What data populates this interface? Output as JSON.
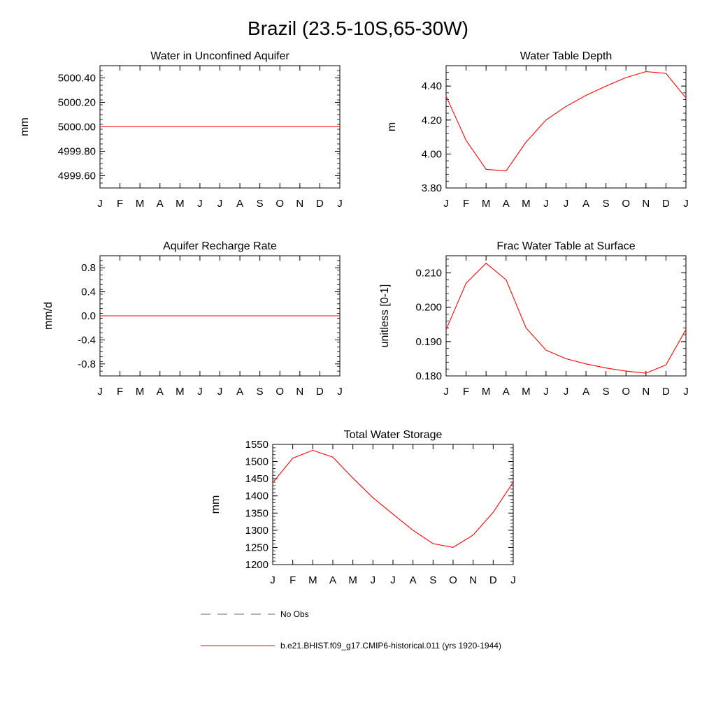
{
  "page_title": "Brazil (23.5-10S,65-30W)",
  "colors": {
    "model_line": "#ff0000",
    "obs_line": "#888888",
    "axis": "#000000"
  },
  "legend": {
    "obs_label": "No Obs",
    "model_label": "b.e21.BHIST.f09_g17.CMIP6-historical.011 (yrs 1920-1944)"
  },
  "chart_data": [
    {
      "type": "line",
      "title": "Water in Unconfined Aquifer",
      "ylabel": "mm",
      "ylim": [
        4999.5,
        5000.5
      ],
      "yticks": [
        4999.6,
        4999.8,
        5000.0,
        5000.2,
        5000.4
      ],
      "ytick_labels": [
        "4999.60",
        "4999.80",
        "5000.00",
        "5000.20",
        "5000.40"
      ],
      "categories": [
        "J",
        "F",
        "M",
        "A",
        "M",
        "J",
        "J",
        "A",
        "S",
        "O",
        "N",
        "D",
        "J"
      ],
      "series": [
        {
          "values": [
            5000,
            5000,
            5000,
            5000,
            5000,
            5000,
            5000,
            5000,
            5000,
            5000,
            5000,
            5000,
            5000
          ]
        }
      ]
    },
    {
      "type": "line",
      "title": "Water Table Depth",
      "ylabel": "m",
      "ylim": [
        3.8,
        4.52
      ],
      "yticks": [
        3.8,
        4.0,
        4.2,
        4.4
      ],
      "ytick_labels": [
        "3.80",
        "4.00",
        "4.20",
        "4.40"
      ],
      "categories": [
        "J",
        "F",
        "M",
        "A",
        "M",
        "J",
        "J",
        "A",
        "S",
        "O",
        "N",
        "D",
        "J"
      ],
      "series": [
        {
          "values": [
            4.34,
            4.08,
            3.91,
            3.9,
            4.07,
            4.2,
            4.28,
            4.345,
            4.4,
            4.45,
            4.485,
            4.475,
            4.33
          ]
        }
      ]
    },
    {
      "type": "line",
      "title": "Aquifer Recharge Rate",
      "ylabel": "mm/d",
      "ylim": [
        -1.0,
        1.0
      ],
      "yticks": [
        -0.8,
        -0.4,
        0.0,
        0.4,
        0.8
      ],
      "ytick_labels": [
        "-0.8",
        "-0.4",
        "0.0",
        "0.4",
        "0.8"
      ],
      "categories": [
        "J",
        "F",
        "M",
        "A",
        "M",
        "J",
        "J",
        "A",
        "S",
        "O",
        "N",
        "D",
        "J"
      ],
      "series": [
        {
          "values": [
            0,
            0,
            0,
            0,
            0,
            0,
            0,
            0,
            0,
            0,
            0,
            0,
            0
          ]
        }
      ]
    },
    {
      "type": "line",
      "title": "Frac Water Table at Surface",
      "ylabel": "unitless [0-1]",
      "ylim": [
        0.18,
        0.215
      ],
      "yticks": [
        0.18,
        0.19,
        0.2,
        0.21
      ],
      "ytick_labels": [
        "0.180",
        "0.190",
        "0.200",
        "0.210"
      ],
      "categories": [
        "J",
        "F",
        "M",
        "A",
        "M",
        "J",
        "J",
        "A",
        "S",
        "O",
        "N",
        "D",
        "J"
      ],
      "series": [
        {
          "values": [
            0.1935,
            0.207,
            0.2128,
            0.208,
            0.194,
            0.1875,
            0.185,
            0.1835,
            0.1823,
            0.1814,
            0.1808,
            0.1832,
            0.1935
          ]
        }
      ]
    },
    {
      "type": "line",
      "title": "Total Water Storage",
      "ylabel": "mm",
      "ylim": [
        1200,
        1550
      ],
      "yticks": [
        1200,
        1250,
        1300,
        1350,
        1400,
        1450,
        1500,
        1550
      ],
      "ytick_labels": [
        "1200",
        "1250",
        "1300",
        "1350",
        "1400",
        "1450",
        "1500",
        "1550"
      ],
      "categories": [
        "J",
        "F",
        "M",
        "A",
        "M",
        "J",
        "J",
        "A",
        "S",
        "O",
        "N",
        "D",
        "J"
      ],
      "series": [
        {
          "values": [
            1438,
            1510,
            1533,
            1513,
            1452,
            1395,
            1347,
            1300,
            1261,
            1250,
            1286,
            1352,
            1440
          ]
        }
      ]
    }
  ]
}
